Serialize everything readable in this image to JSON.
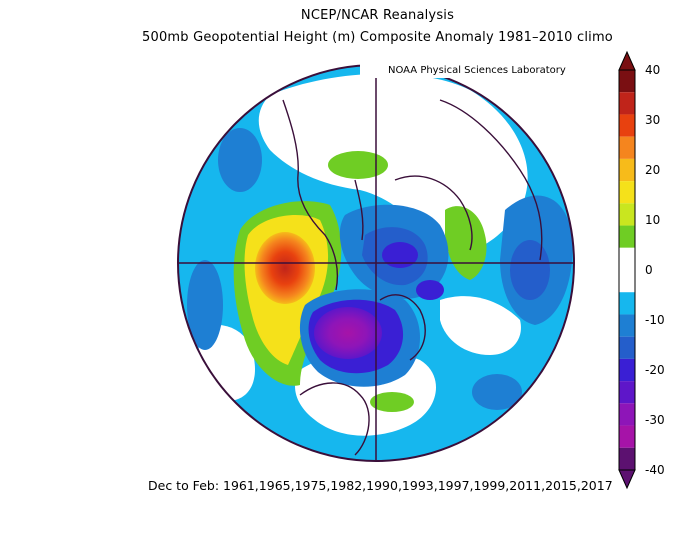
{
  "title": "NCEP/NCAR Reanalysis",
  "subtitle": "500mb Geopotential Height (m) Composite Anomaly 1981–2010 climo",
  "credit": "NOAA Physical Sciences Laboratory",
  "footer": "Dec to Feb: 1961,1965,1975,1982,1990,1993,1997,1999,2011,2015,2017",
  "colorbar": {
    "labels": [
      "40",
      "30",
      "20",
      "10",
      "0",
      "-10",
      "-20",
      "-30",
      "-40"
    ],
    "colors": [
      "#7a0f12",
      "#c0241a",
      "#e8410f",
      "#f5851e",
      "#f7bb1a",
      "#f5e11a",
      "#c9e61f",
      "#6fcd24",
      "#ffffff",
      "#ffffff",
      "#16b7ee",
      "#1e7fd3",
      "#245ecb",
      "#3a1fd4",
      "#5e16c9",
      "#8e15b8",
      "#a613a8",
      "#5c1170"
    ]
  },
  "map": {
    "projection": "polar-stereographic",
    "ocean_background": "#16b7ee",
    "anomaly_features": [
      {
        "label": "+40",
        "color": "#e8410f"
      },
      {
        "label": "+20",
        "color": "#f5e11a"
      },
      {
        "label": "+10",
        "color": "#6fcd24"
      },
      {
        "label": "-30",
        "color": "#8e15b8"
      },
      {
        "label": "-20",
        "color": "#3a1fd4"
      },
      {
        "label": "-10",
        "color": "#245ecb"
      }
    ]
  }
}
